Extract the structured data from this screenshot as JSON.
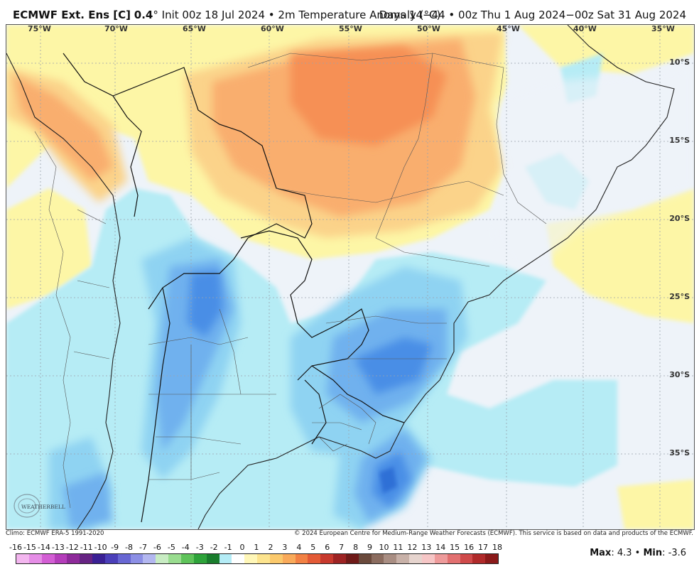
{
  "header": {
    "product": "ECMWF Ext. Ens [C]",
    "value": "0.4",
    "init": "° Init 00z 18 Jul 2024 • 2m Temperature Anomaly (°C)",
    "range": "Days 14−44 • 00z Thu 1 Aug 2024−00z Sat 31 Aug 2024"
  },
  "map": {
    "lon_labels": [
      "75°W",
      "70°W",
      "65°W",
      "60°W",
      "55°W",
      "50°W",
      "45°W",
      "40°W",
      "35°W"
    ],
    "lat_labels": [
      "10°S",
      "15°S",
      "20°S",
      "25°S",
      "30°S",
      "35°S"
    ],
    "colors": {
      "warm_light": "#fdf6a6",
      "warm_mid": "#fbd38a",
      "warm_orange": "#f9ae6e",
      "warm_deep": "#f69054",
      "neutral": "#eef3f9",
      "cool_light": "#b6ecf5",
      "cool_mid": "#8fd3f2",
      "cool_blue": "#6fb1ee",
      "cool_deep": "#4a8ee6",
      "cool_core": "#2f6fd6"
    }
  },
  "credits": {
    "climo": "Climo: ECMWF ERA-5 1991-2020",
    "copyright": "© 2024 European Centre for Medium-Range Weather Forecasts (ECMWF). This service is based on data and products of the ECMWF."
  },
  "logo": {
    "text": "WEATHERBELL"
  },
  "colorbar": {
    "labels": [
      "-16",
      "-15",
      "-14",
      "-13",
      "-12",
      "-11",
      "-10",
      "-9",
      "-8",
      "-7",
      "-6",
      "-5",
      "-4",
      "-3",
      "-2",
      "-1",
      "0",
      "1",
      "2",
      "3",
      "4",
      "5",
      "6",
      "7",
      "8",
      "9",
      "10",
      "11",
      "12",
      "13",
      "14",
      "15",
      "16",
      "17",
      "18"
    ],
    "colors": [
      "#f3b6ef",
      "#e58de6",
      "#d35ed4",
      "#b43dba",
      "#8e2a9a",
      "#662383",
      "#3a2094",
      "#4b3fb9",
      "#6867d3",
      "#8c8fe5",
      "#b3b7f0",
      "#c8ecc3",
      "#99dc8f",
      "#5fc35a",
      "#2ea33a",
      "#1a7d2d",
      "#b4ecf6",
      "#ffffff",
      "#fff7b8",
      "#fde48e",
      "#fbc96c",
      "#f9aa5a",
      "#f28144",
      "#e35a36",
      "#c7392d",
      "#9d2323",
      "#6f1a18",
      "#6a4a3c",
      "#8b6c5f",
      "#a98e83",
      "#c8b1a8",
      "#e6d4ce",
      "#f6c6c6",
      "#ee9b9b",
      "#e27070",
      "#cf4a4a",
      "#b02a2a",
      "#8b1a1a"
    ]
  },
  "stats": {
    "max_label": "Max",
    "max_value": "4.3",
    "min_label": "Min",
    "min_value": "-3.6"
  }
}
